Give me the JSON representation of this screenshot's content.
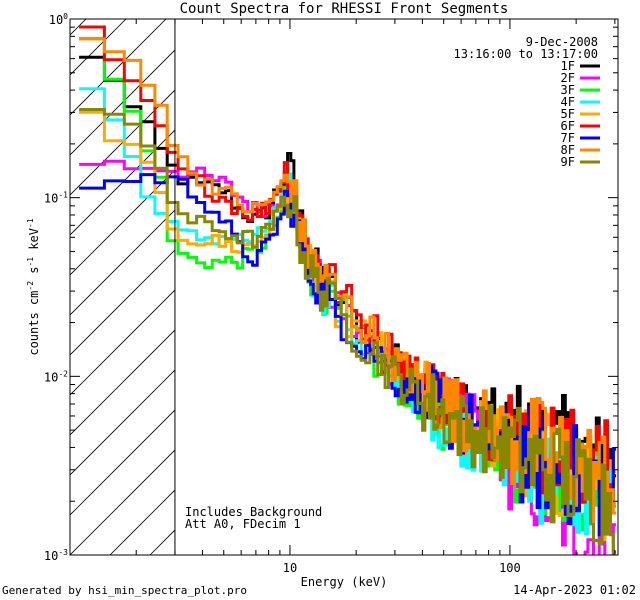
{
  "chart_data": {
    "type": "line",
    "title": "Count Spectra for RHESSI Front Segments",
    "xlabel": "Energy (keV)",
    "ylabel_parts": {
      "base": "counts cm",
      "exp1": "-2",
      "mid": " s",
      "exp2": "-1",
      "unit": " keV",
      "exp3": "-1"
    },
    "x_scale": "log",
    "y_scale": "log",
    "xlim": [
      1.0,
      310.0
    ],
    "ylim": [
      0.001,
      1.0
    ],
    "x_ticks": [
      {
        "value": 10,
        "label": "10"
      },
      {
        "value": 100,
        "label": "100"
      }
    ],
    "y_ticks": [
      {
        "value": 1,
        "base": "10",
        "exp": "0"
      },
      {
        "value": 0.1,
        "base": "10",
        "exp": "-1"
      },
      {
        "value": 0.01,
        "base": "10",
        "exp": "-2"
      },
      {
        "value": 0.001,
        "base": "10",
        "exp": "-3"
      }
    ],
    "attenuator_cutoff_kev": 3.0,
    "legend": {
      "placement": "top-right",
      "date": "9-Dec-2008",
      "time_range": "13:16:00 to 13:17:00"
    },
    "annotations": [
      "Includes Background",
      "Att A0, FDecim 1"
    ],
    "series": [
      {
        "name": "1F",
        "color": "#000000",
        "anchors": [
          [
            1.1,
            0.55
          ],
          [
            1.3,
            0.6
          ],
          [
            1.5,
            0.55
          ],
          [
            1.8,
            0.35
          ],
          [
            2.2,
            0.25
          ],
          [
            2.6,
            0.18
          ],
          [
            3.0,
            0.14
          ],
          [
            3.5,
            0.12
          ],
          [
            4.0,
            0.115
          ],
          [
            5.0,
            0.11
          ],
          [
            6.0,
            0.085
          ],
          [
            7.0,
            0.075
          ],
          [
            8.0,
            0.085
          ],
          [
            9.0,
            0.12
          ],
          [
            9.6,
            0.15
          ],
          [
            10.3,
            0.13
          ],
          [
            11.0,
            0.08
          ],
          [
            12.0,
            0.05
          ],
          [
            14.0,
            0.035
          ],
          [
            17.0,
            0.027
          ],
          [
            20.0,
            0.02
          ],
          [
            25.0,
            0.015
          ],
          [
            30.0,
            0.012
          ],
          [
            40.0,
            0.0085
          ],
          [
            50.0,
            0.007
          ],
          [
            60.0,
            0.0062
          ],
          [
            80.0,
            0.0055
          ],
          [
            100.0,
            0.005
          ],
          [
            130.0,
            0.0045
          ],
          [
            170.0,
            0.004
          ],
          [
            220.0,
            0.0035
          ],
          [
            300.0,
            0.003
          ]
        ]
      },
      {
        "name": "2F",
        "color": "#ff00ff",
        "anchors": [
          [
            1.1,
            0.16
          ],
          [
            1.3,
            0.16
          ],
          [
            1.5,
            0.155
          ],
          [
            1.8,
            0.15
          ],
          [
            2.2,
            0.15
          ],
          [
            2.6,
            0.15
          ],
          [
            3.0,
            0.145
          ],
          [
            3.5,
            0.14
          ],
          [
            4.0,
            0.13
          ],
          [
            5.0,
            0.12
          ],
          [
            6.0,
            0.1
          ],
          [
            7.0,
            0.085
          ],
          [
            8.0,
            0.09
          ],
          [
            9.0,
            0.1
          ],
          [
            9.6,
            0.105
          ],
          [
            10.3,
            0.1
          ],
          [
            11.0,
            0.07
          ],
          [
            12.0,
            0.045
          ],
          [
            14.0,
            0.032
          ],
          [
            17.0,
            0.025
          ],
          [
            20.0,
            0.018
          ],
          [
            25.0,
            0.014
          ],
          [
            30.0,
            0.011
          ],
          [
            40.0,
            0.008
          ],
          [
            50.0,
            0.0065
          ],
          [
            60.0,
            0.0055
          ],
          [
            80.0,
            0.0045
          ],
          [
            100.0,
            0.0035
          ],
          [
            130.0,
            0.0025
          ],
          [
            170.0,
            0.0018
          ],
          [
            220.0,
            0.0013
          ],
          [
            300.0,
            0.001
          ]
        ]
      },
      {
        "name": "3F",
        "color": "#00ff00",
        "anchors": [
          [
            1.1,
            0.9
          ],
          [
            1.3,
            0.75
          ],
          [
            1.5,
            0.5
          ],
          [
            1.8,
            0.35
          ],
          [
            2.2,
            0.22
          ],
          [
            2.6,
            0.12
          ],
          [
            3.0,
            0.05
          ],
          [
            3.5,
            0.045
          ],
          [
            4.0,
            0.045
          ],
          [
            5.0,
            0.043
          ],
          [
            6.0,
            0.045
          ],
          [
            7.0,
            0.05
          ],
          [
            8.0,
            0.06
          ],
          [
            9.0,
            0.08
          ],
          [
            9.6,
            0.1
          ],
          [
            10.3,
            0.095
          ],
          [
            11.0,
            0.06
          ],
          [
            12.0,
            0.04
          ],
          [
            14.0,
            0.03
          ],
          [
            17.0,
            0.022
          ],
          [
            20.0,
            0.016
          ],
          [
            25.0,
            0.012
          ],
          [
            30.0,
            0.0095
          ],
          [
            40.0,
            0.0072
          ],
          [
            50.0,
            0.006
          ],
          [
            60.0,
            0.0052
          ],
          [
            80.0,
            0.0045
          ],
          [
            100.0,
            0.004
          ],
          [
            130.0,
            0.0035
          ],
          [
            170.0,
            0.003
          ],
          [
            220.0,
            0.0025
          ],
          [
            300.0,
            0.002
          ]
        ]
      },
      {
        "name": "4F",
        "color": "#00ffff",
        "anchors": [
          [
            1.1,
            0.45
          ],
          [
            1.3,
            0.4
          ],
          [
            1.5,
            0.3
          ],
          [
            1.8,
            0.2
          ],
          [
            2.2,
            0.12
          ],
          [
            2.6,
            0.08
          ],
          [
            3.0,
            0.065
          ],
          [
            3.5,
            0.06
          ],
          [
            4.0,
            0.06
          ],
          [
            5.0,
            0.06
          ],
          [
            6.0,
            0.058
          ],
          [
            7.0,
            0.058
          ],
          [
            8.0,
            0.07
          ],
          [
            9.0,
            0.09
          ],
          [
            9.6,
            0.11
          ],
          [
            10.3,
            0.1
          ],
          [
            11.0,
            0.065
          ],
          [
            12.0,
            0.042
          ],
          [
            14.0,
            0.03
          ],
          [
            17.0,
            0.023
          ],
          [
            20.0,
            0.017
          ],
          [
            25.0,
            0.013
          ],
          [
            30.0,
            0.01
          ],
          [
            40.0,
            0.0075
          ],
          [
            50.0,
            0.006
          ],
          [
            60.0,
            0.005
          ],
          [
            80.0,
            0.0042
          ],
          [
            100.0,
            0.0035
          ],
          [
            130.0,
            0.003
          ],
          [
            170.0,
            0.0026
          ],
          [
            220.0,
            0.0022
          ],
          [
            300.0,
            0.0018
          ]
        ]
      },
      {
        "name": "5F",
        "color": "#ffaa00",
        "anchors": [
          [
            1.1,
            0.3
          ],
          [
            1.3,
            0.28
          ],
          [
            1.5,
            0.25
          ],
          [
            1.8,
            0.2
          ],
          [
            2.2,
            0.15
          ],
          [
            2.6,
            0.1
          ],
          [
            3.0,
            0.065
          ],
          [
            3.5,
            0.06
          ],
          [
            4.0,
            0.058
          ],
          [
            5.0,
            0.055
          ],
          [
            6.0,
            0.052
          ],
          [
            7.0,
            0.055
          ],
          [
            8.0,
            0.065
          ],
          [
            9.0,
            0.085
          ],
          [
            9.6,
            0.11
          ],
          [
            10.3,
            0.1
          ],
          [
            11.0,
            0.065
          ],
          [
            12.0,
            0.043
          ],
          [
            14.0,
            0.031
          ],
          [
            17.0,
            0.024
          ],
          [
            20.0,
            0.018
          ],
          [
            25.0,
            0.014
          ],
          [
            30.0,
            0.011
          ],
          [
            40.0,
            0.008
          ],
          [
            50.0,
            0.0065
          ],
          [
            60.0,
            0.0055
          ],
          [
            80.0,
            0.0047
          ],
          [
            100.0,
            0.004
          ],
          [
            130.0,
            0.0034
          ],
          [
            170.0,
            0.003
          ],
          [
            220.0,
            0.0026
          ],
          [
            300.0,
            0.0022
          ]
        ]
      },
      {
        "name": "6F",
        "color": "#ff0000",
        "anchors": [
          [
            1.1,
            0.9
          ],
          [
            1.3,
            0.8
          ],
          [
            1.5,
            0.6
          ],
          [
            1.8,
            0.45
          ],
          [
            2.2,
            0.35
          ],
          [
            2.6,
            0.25
          ],
          [
            3.0,
            0.15
          ],
          [
            3.5,
            0.13
          ],
          [
            4.0,
            0.12
          ],
          [
            5.0,
            0.1
          ],
          [
            6.0,
            0.085
          ],
          [
            7.0,
            0.08
          ],
          [
            8.0,
            0.09
          ],
          [
            9.0,
            0.12
          ],
          [
            9.6,
            0.14
          ],
          [
            10.3,
            0.13
          ],
          [
            11.0,
            0.09
          ],
          [
            12.0,
            0.055
          ],
          [
            14.0,
            0.04
          ],
          [
            17.0,
            0.03
          ],
          [
            20.0,
            0.022
          ],
          [
            25.0,
            0.017
          ],
          [
            30.0,
            0.013
          ],
          [
            40.0,
            0.0095
          ],
          [
            50.0,
            0.0075
          ],
          [
            60.0,
            0.0064
          ],
          [
            80.0,
            0.0055
          ],
          [
            100.0,
            0.0048
          ],
          [
            130.0,
            0.0042
          ],
          [
            170.0,
            0.0037
          ],
          [
            220.0,
            0.0032
          ],
          [
            300.0,
            0.0028
          ]
        ]
      },
      {
        "name": "7F",
        "color": "#0000ff",
        "anchors": [
          [
            1.1,
            0.125
          ],
          [
            1.3,
            0.12
          ],
          [
            1.5,
            0.12
          ],
          [
            1.8,
            0.125
          ],
          [
            2.2,
            0.13
          ],
          [
            2.6,
            0.13
          ],
          [
            3.0,
            0.125
          ],
          [
            3.5,
            0.11
          ],
          [
            4.0,
            0.1
          ],
          [
            5.0,
            0.075
          ],
          [
            6.0,
            0.05
          ],
          [
            7.0,
            0.045
          ],
          [
            8.0,
            0.055
          ],
          [
            9.0,
            0.075
          ],
          [
            9.6,
            0.095
          ],
          [
            10.3,
            0.09
          ],
          [
            11.0,
            0.06
          ],
          [
            12.0,
            0.04
          ],
          [
            14.0,
            0.03
          ],
          [
            17.0,
            0.022
          ],
          [
            20.0,
            0.017
          ],
          [
            25.0,
            0.013
          ],
          [
            30.0,
            0.01
          ],
          [
            40.0,
            0.0078
          ],
          [
            50.0,
            0.0064
          ],
          [
            60.0,
            0.0055
          ],
          [
            80.0,
            0.0047
          ],
          [
            100.0,
            0.004
          ],
          [
            130.0,
            0.0034
          ],
          [
            170.0,
            0.003
          ],
          [
            220.0,
            0.0026
          ],
          [
            300.0,
            0.0022
          ]
        ]
      },
      {
        "name": "8F",
        "color": "#ff8800",
        "anchors": [
          [
            1.1,
            0.75
          ],
          [
            1.3,
            0.75
          ],
          [
            1.5,
            0.7
          ],
          [
            1.8,
            0.6
          ],
          [
            2.2,
            0.5
          ],
          [
            2.6,
            0.35
          ],
          [
            3.0,
            0.18
          ],
          [
            3.5,
            0.14
          ],
          [
            4.0,
            0.13
          ],
          [
            5.0,
            0.11
          ],
          [
            6.0,
            0.09
          ],
          [
            7.0,
            0.085
          ],
          [
            8.0,
            0.095
          ],
          [
            9.0,
            0.11
          ],
          [
            9.6,
            0.13
          ],
          [
            10.3,
            0.12
          ],
          [
            11.0,
            0.075
          ],
          [
            12.0,
            0.05
          ],
          [
            14.0,
            0.037
          ],
          [
            17.0,
            0.028
          ],
          [
            20.0,
            0.021
          ],
          [
            25.0,
            0.016
          ],
          [
            30.0,
            0.012
          ],
          [
            40.0,
            0.009
          ],
          [
            50.0,
            0.0073
          ],
          [
            60.0,
            0.0062
          ],
          [
            80.0,
            0.0053
          ],
          [
            100.0,
            0.0046
          ],
          [
            130.0,
            0.004
          ],
          [
            170.0,
            0.0035
          ],
          [
            220.0,
            0.003
          ],
          [
            300.0,
            0.0026
          ]
        ]
      },
      {
        "name": "9F",
        "color": "#888800",
        "anchors": [
          [
            1.1,
            0.3
          ],
          [
            1.3,
            0.32
          ],
          [
            1.5,
            0.3
          ],
          [
            1.8,
            0.25
          ],
          [
            2.2,
            0.2
          ],
          [
            2.6,
            0.15
          ],
          [
            3.0,
            0.09
          ],
          [
            3.5,
            0.075
          ],
          [
            4.0,
            0.07
          ],
          [
            5.0,
            0.065
          ],
          [
            6.0,
            0.06
          ],
          [
            7.0,
            0.058
          ],
          [
            8.0,
            0.065
          ],
          [
            9.0,
            0.085
          ],
          [
            9.6,
            0.1
          ],
          [
            10.3,
            0.095
          ],
          [
            11.0,
            0.06
          ],
          [
            12.0,
            0.042
          ],
          [
            14.0,
            0.03
          ],
          [
            17.0,
            0.023
          ],
          [
            20.0,
            0.017
          ],
          [
            25.0,
            0.013
          ],
          [
            30.0,
            0.01
          ],
          [
            40.0,
            0.0077
          ],
          [
            50.0,
            0.0062
          ],
          [
            60.0,
            0.0053
          ],
          [
            80.0,
            0.0045
          ],
          [
            100.0,
            0.0038
          ],
          [
            130.0,
            0.0032
          ],
          [
            170.0,
            0.0028
          ],
          [
            220.0,
            0.0024
          ],
          [
            300.0,
            0.002
          ]
        ]
      }
    ]
  },
  "footer": {
    "generated_by": "Generated by hsi_min_spectra_plot.pro",
    "timestamp": "14-Apr-2023 01:02"
  }
}
